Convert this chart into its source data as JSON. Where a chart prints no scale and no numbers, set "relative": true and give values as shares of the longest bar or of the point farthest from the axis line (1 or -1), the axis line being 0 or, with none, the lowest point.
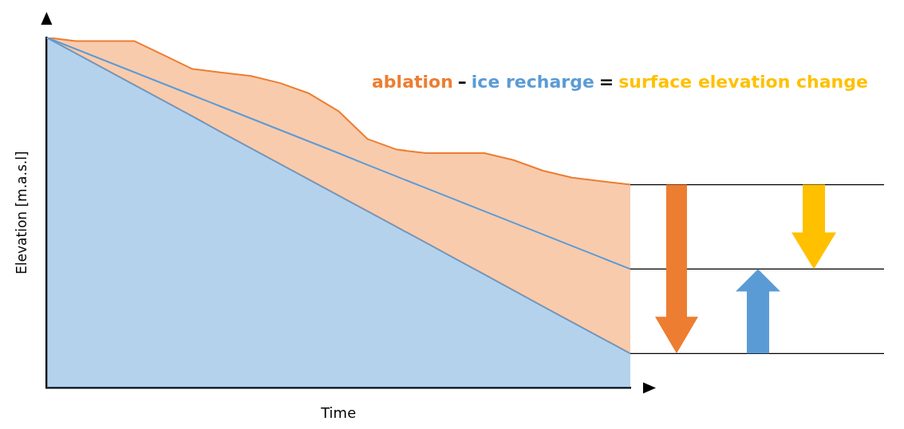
{
  "chart_data": {
    "type": "area",
    "relative": true,
    "xlabel": "Time",
    "ylabel": "Elevation [m.a.s.l]",
    "annotations": [
      "ablation",
      "–",
      "ice recharge",
      "=",
      "surface elevation change"
    ],
    "categories": [
      null,
      null,
      null,
      null,
      null,
      null,
      null,
      null,
      null,
      null,
      null,
      null,
      null,
      null,
      null,
      null,
      null,
      null,
      null,
      null,
      null
    ],
    "series": [
      {
        "type": "area",
        "color": "#ed7d31",
        "values": [
          1,
          0.99,
          0.99,
          0.99,
          0.95,
          0.91,
          0.9,
          0.89,
          0.87,
          0.84,
          0.79,
          0.71,
          0.68,
          0.67,
          0.67,
          0.67,
          0.65,
          0.62,
          0.6,
          0.59,
          0.58
        ]
      },
      {
        "type": "line",
        "color": "#5b9bd5",
        "values": [
          1,
          0.967,
          0.934,
          0.901,
          0.868,
          0.835,
          0.802,
          0.769,
          0.736,
          0.703,
          0.67,
          0.636,
          0.603,
          0.57,
          0.537,
          0.504,
          0.471,
          0.438,
          0.405,
          0.372,
          0.339
        ]
      },
      {
        "type": "area",
        "color": "#5b9bd5",
        "values": [
          1,
          0.955,
          0.91,
          0.865,
          0.82,
          0.775,
          0.729,
          0.684,
          0.639,
          0.594,
          0.549,
          0.504,
          0.459,
          0.414,
          0.369,
          0.324,
          0.278,
          0.233,
          0.188,
          0.143,
          0.098
        ]
      }
    ],
    "grid": false,
    "legend": false
  }
}
